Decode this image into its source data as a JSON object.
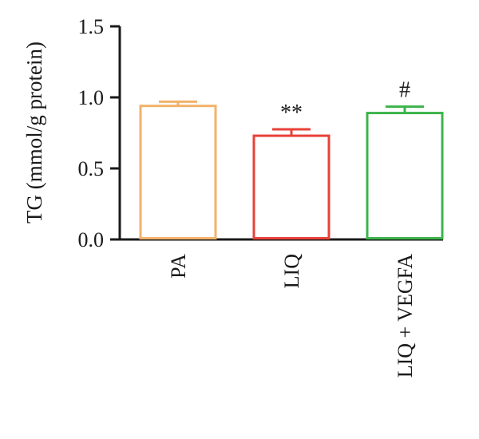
{
  "chart_data": {
    "type": "bar",
    "title": "",
    "xlabel": "",
    "ylabel": "TG (mmol/g protein)",
    "ylim": [
      0,
      1.5
    ],
    "yticks": [
      "0.0",
      "0.5",
      "1.0",
      "1.5"
    ],
    "categories": [
      "PA",
      "LIQ",
      "LIQ + VEGFA"
    ],
    "values": [
      0.94,
      0.73,
      0.89
    ],
    "errors": [
      0.03,
      0.045,
      0.045
    ],
    "annotations": [
      "",
      "**",
      "#"
    ],
    "colors": [
      "#f2b26b",
      "#e8413a",
      "#3cb44a"
    ],
    "grid": false
  }
}
